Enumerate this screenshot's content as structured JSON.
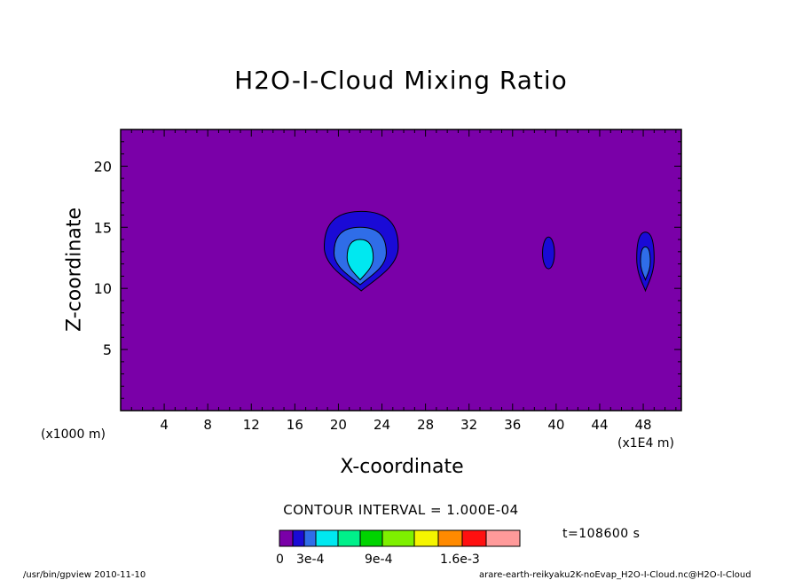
{
  "chart_data": {
    "type": "contour",
    "title": "H2O-I-Cloud Mixing Ratio",
    "xlabel": "X-coordinate",
    "ylabel": "Z-coordinate",
    "x_unit": "(x1000 m)",
    "x_unit_secondary": "(x1E4 m)",
    "xlim": [
      0,
      51.5
    ],
    "ylim": [
      0,
      23
    ],
    "x_ticks": [
      4,
      8,
      12,
      16,
      20,
      24,
      28,
      32,
      36,
      40,
      44,
      48
    ],
    "y_ticks": [
      5,
      10,
      15,
      20
    ],
    "contour_interval": "CONTOUR INTERVAL = 1.000E-04",
    "time_label": "t=108600 s",
    "colorbar": {
      "colors": [
        "#7a00a8",
        "#1a0ad6",
        "#2f6de8",
        "#00e8f0",
        "#00f08a",
        "#00d400",
        "#7ef000",
        "#f5f500",
        "#ff8a00",
        "#ff1010",
        "#ff9a9a"
      ],
      "labels": [
        "0",
        "3e-4",
        "9e-4",
        "1.6e-3"
      ]
    },
    "background_color": "#7a00a8",
    "features": [
      {
        "name": "main cloud",
        "x_center": 22,
        "z_center": 13.2,
        "max_level_color": "#00e8f0"
      },
      {
        "name": "small cloud 1",
        "x_center": 39.3,
        "z_center": 12.9,
        "max_level_color": "#1a0ad6"
      },
      {
        "name": "small cloud 2",
        "x_center": 48.2,
        "z_center": 12.5,
        "max_level_color": "#2f6de8"
      }
    ]
  },
  "footer": {
    "left": "/usr/bin/gpview 2010-11-10",
    "right": "arare-earth-reikyaku2K-noEvap_H2O-I-Cloud.nc@H2O-I-Cloud"
  }
}
